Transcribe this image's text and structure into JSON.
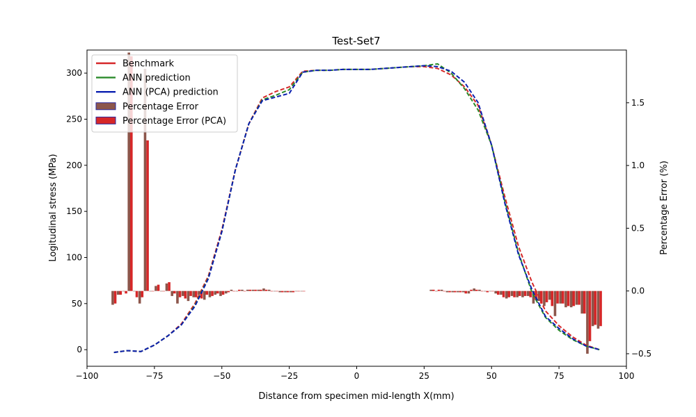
{
  "chart_data": {
    "type": "line+bar",
    "title": "Test-Set7",
    "xlabel": "Distance from specimen mid-length X(mm)",
    "ylabel": "Logitudinal stress (MPa)",
    "y2label": "Percentage Error (%)",
    "xlim": [
      -100,
      100
    ],
    "ylim": [
      -18,
      325
    ],
    "y2lim": [
      -0.6,
      1.92
    ],
    "xticks": [
      -100,
      -75,
      -50,
      -25,
      0,
      25,
      50,
      75,
      100
    ],
    "yticks": [
      0,
      50,
      100,
      150,
      200,
      250,
      300
    ],
    "y2ticks": [
      -0.5,
      0.0,
      0.5,
      1.0,
      1.5
    ],
    "xtick_labels": [
      "−100",
      "−75",
      "−50",
      "−25",
      "0",
      "25",
      "50",
      "75",
      "100"
    ],
    "ytick_labels": [
      "0",
      "50",
      "100",
      "150",
      "200",
      "250",
      "300"
    ],
    "y2tick_labels": [
      "−0.5",
      "0.0",
      "0.5",
      "1.0",
      "1.5"
    ],
    "legend_position": "upper-left",
    "line_series": [
      {
        "name": "Benchmark",
        "color": "#d62728",
        "x": [
          -90,
          -85,
          -80,
          -75,
          -70,
          -65,
          -60,
          -55,
          -50,
          -45,
          -40,
          -35,
          -30,
          -25,
          -20,
          -15,
          -10,
          -5,
          0,
          5,
          10,
          15,
          20,
          25,
          30,
          35,
          40,
          45,
          50,
          55,
          60,
          65,
          70,
          75,
          80,
          85,
          90
        ],
        "y": [
          -3,
          -1,
          -2,
          5,
          15,
          28,
          50,
          80,
          130,
          195,
          245,
          273,
          280,
          285,
          302,
          303,
          303,
          304,
          304,
          304,
          305,
          306,
          307,
          307,
          305,
          298,
          285,
          265,
          222,
          165,
          112,
          73,
          42,
          26,
          14,
          5,
          0
        ]
      },
      {
        "name": "ANN prediction",
        "color": "#2a8a2a",
        "x": [
          -90,
          -85,
          -80,
          -75,
          -70,
          -65,
          -60,
          -55,
          -50,
          -45,
          -40,
          -35,
          -30,
          -25,
          -20,
          -15,
          -10,
          -5,
          0,
          5,
          10,
          15,
          20,
          25,
          30,
          35,
          40,
          45,
          50,
          55,
          60,
          65,
          70,
          75,
          80,
          85,
          90
        ],
        "y": [
          -3,
          -1,
          -2,
          5,
          15,
          27,
          48,
          78,
          128,
          195,
          245,
          271,
          276,
          282,
          301,
          303,
          303,
          304,
          304,
          304,
          305,
          306,
          307,
          308,
          310,
          300,
          283,
          260,
          222,
          160,
          105,
          62,
          35,
          21,
          11,
          4,
          0
        ]
      },
      {
        "name": "ANN (PCA) prediction",
        "color": "#0a1fb0",
        "x": [
          -90,
          -85,
          -80,
          -75,
          -70,
          -65,
          -60,
          -55,
          -50,
          -45,
          -40,
          -35,
          -30,
          -25,
          -20,
          -15,
          -10,
          -5,
          0,
          5,
          10,
          15,
          20,
          25,
          30,
          35,
          40,
          45,
          50,
          55,
          60,
          65,
          70,
          75,
          80,
          85,
          90
        ],
        "y": [
          -3,
          -1,
          -2,
          5,
          15,
          27,
          47,
          77,
          128,
          195,
          245,
          270,
          274,
          278,
          301,
          303,
          303,
          304,
          304,
          304,
          305,
          306,
          307,
          308,
          307,
          302,
          290,
          268,
          222,
          158,
          103,
          65,
          36,
          23,
          12,
          4,
          0
        ]
      }
    ],
    "bar_series": [
      {
        "name": "Percentage Error",
        "color": "#8c564b",
        "edgecolor": "#2a2aa0",
        "x": [
          -90,
          -88,
          -86,
          -84,
          -82,
          -80,
          -78,
          -76,
          -74,
          -72,
          -70,
          -68,
          -66,
          -64,
          -62,
          -60,
          -58,
          -56,
          -54,
          -52,
          -50,
          -48,
          -46,
          -44,
          -42,
          -40,
          -38,
          -36,
          -34,
          -32,
          -30,
          -28,
          -26,
          -24,
          -22,
          -20,
          28,
          30,
          32,
          34,
          36,
          38,
          40,
          42,
          44,
          46,
          48,
          50,
          52,
          54,
          56,
          58,
          60,
          62,
          64,
          66,
          68,
          70,
          72,
          74,
          76,
          78,
          80,
          82,
          84,
          86,
          88,
          90
        ],
        "y": [
          -0.11,
          -0.03,
          0.0,
          1.9,
          0.0,
          -0.1,
          1.77,
          0.0,
          0.04,
          0.0,
          0.06,
          -0.04,
          -0.1,
          -0.04,
          -0.08,
          -0.05,
          -0.03,
          -0.07,
          -0.05,
          -0.03,
          -0.04,
          -0.02,
          0.01,
          0.0,
          0.01,
          0.01,
          0.01,
          0.01,
          0.02,
          0.01,
          0.0,
          -0.01,
          -0.01,
          -0.01,
          0.0,
          0.0,
          0.01,
          0.0,
          0.01,
          -0.01,
          -0.01,
          -0.01,
          -0.01,
          -0.02,
          0.02,
          0.01,
          0.0,
          0.0,
          -0.02,
          -0.03,
          -0.06,
          -0.04,
          -0.05,
          -0.05,
          -0.04,
          -0.1,
          -0.08,
          -0.12,
          -0.07,
          -0.2,
          -0.1,
          -0.13,
          -0.13,
          -0.11,
          -0.18,
          -0.5,
          -0.28,
          -0.3
        ]
      },
      {
        "name": "Percentage Error (PCA)",
        "color": "#d62728",
        "edgecolor": "#2a2aa0",
        "x": [
          -90,
          -88,
          -86,
          -84,
          -82,
          -80,
          -78,
          -76,
          -74,
          -72,
          -70,
          -68,
          -66,
          -64,
          -62,
          -60,
          -58,
          -56,
          -54,
          -52,
          -50,
          -48,
          -46,
          -44,
          -42,
          -40,
          -38,
          -36,
          -34,
          -32,
          -30,
          -28,
          -26,
          -24,
          -22,
          -20,
          28,
          30,
          32,
          34,
          36,
          38,
          40,
          42,
          44,
          46,
          48,
          50,
          52,
          54,
          56,
          58,
          60,
          62,
          64,
          66,
          68,
          70,
          72,
          74,
          76,
          78,
          80,
          82,
          84,
          86,
          88,
          90
        ],
        "y": [
          -0.1,
          -0.03,
          -0.02,
          1.87,
          -0.05,
          -0.05,
          1.2,
          0.0,
          0.05,
          0.0,
          0.07,
          -0.02,
          -0.05,
          -0.06,
          -0.04,
          -0.05,
          -0.06,
          -0.03,
          -0.04,
          -0.02,
          -0.03,
          -0.01,
          0.0,
          0.01,
          0.0,
          0.01,
          0.01,
          0.01,
          0.01,
          0.0,
          0.0,
          -0.01,
          -0.01,
          -0.01,
          0.0,
          0.0,
          0.01,
          0.01,
          0.0,
          -0.01,
          -0.01,
          -0.01,
          -0.02,
          0.01,
          0.01,
          0.0,
          -0.01,
          0.0,
          -0.03,
          -0.05,
          -0.05,
          -0.05,
          -0.04,
          -0.04,
          -0.05,
          -0.07,
          -0.1,
          -0.09,
          -0.12,
          -0.1,
          -0.1,
          -0.12,
          -0.12,
          -0.11,
          -0.18,
          -0.4,
          -0.27,
          -0.28
        ]
      }
    ]
  }
}
